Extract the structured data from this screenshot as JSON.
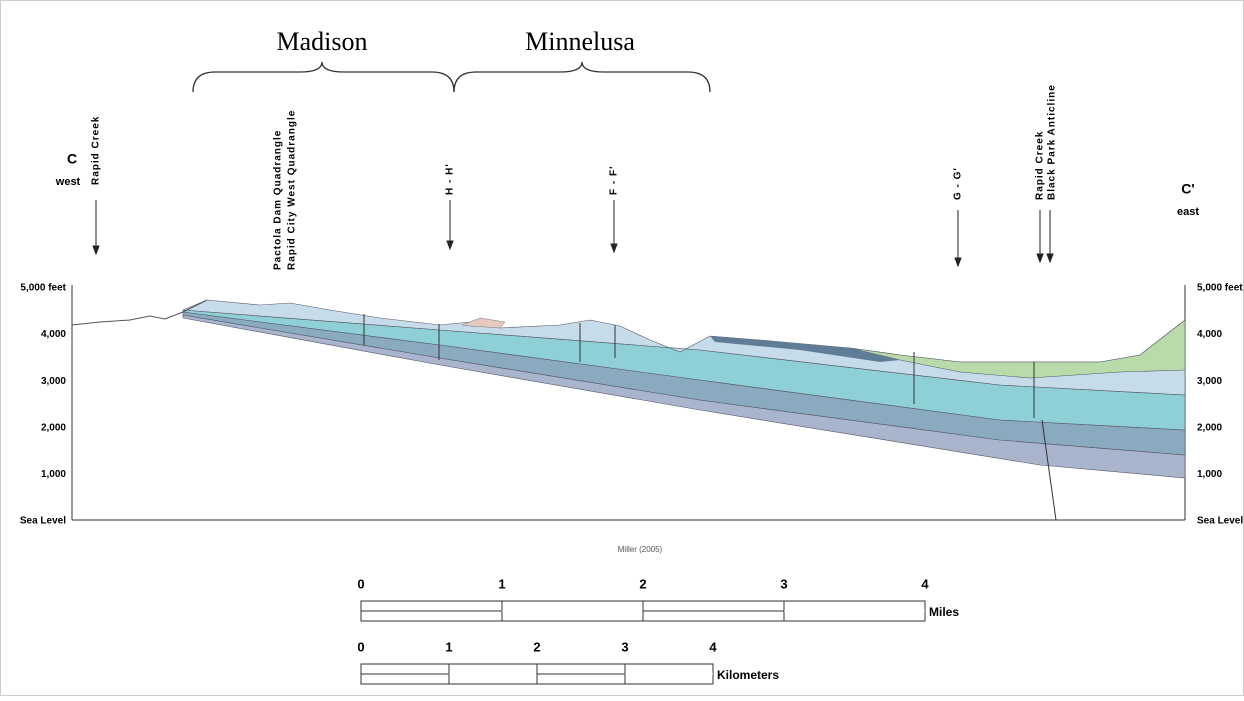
{
  "formations": {
    "madison": "Madison",
    "minnelusa": "Minnelusa"
  },
  "west_end": {
    "label": "C",
    "direction": "west",
    "site": "Rapid Creek"
  },
  "east_end": {
    "label": "C'",
    "direction": "east"
  },
  "sites": {
    "pactola": [
      "Pactola Dam Quadrangle",
      "Rapid City West Quadrangle"
    ],
    "h": "H - H'",
    "f": "F - F'",
    "g": "G - G'",
    "east": [
      "Rapid Creek",
      "Black Park Anticline"
    ]
  },
  "elevation_labels": [
    "5,000 feet",
    "4,000",
    "3,000",
    "2,000",
    "1,000",
    "Sea Level"
  ],
  "source": "Miller (2005)",
  "scale_miles": {
    "ticks": [
      "0",
      "1",
      "2",
      "3",
      "4"
    ],
    "unit": "Miles"
  },
  "scale_km": {
    "ticks": [
      "0",
      "1",
      "2",
      "3",
      "4"
    ],
    "unit": "Kilometers"
  }
}
